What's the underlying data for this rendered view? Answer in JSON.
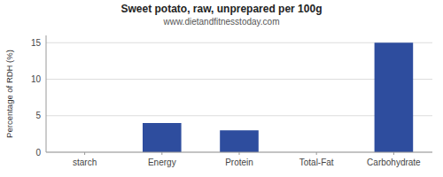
{
  "chart_data": {
    "type": "bar",
    "title": "Sweet potato, raw, unprepared per 100g",
    "subtitle": "www.dietandfitnesstoday.com",
    "ylabel": "Percentage of RDH (%)",
    "categories": [
      "starch",
      "Energy",
      "Protein",
      "Total-Fat",
      "Carbohydrate"
    ],
    "values": [
      0,
      4,
      3,
      0,
      15
    ],
    "color": "#2e4d9e",
    "ylim": [
      0,
      16
    ],
    "yticks": [
      0,
      5,
      10,
      15
    ],
    "grid": true
  }
}
